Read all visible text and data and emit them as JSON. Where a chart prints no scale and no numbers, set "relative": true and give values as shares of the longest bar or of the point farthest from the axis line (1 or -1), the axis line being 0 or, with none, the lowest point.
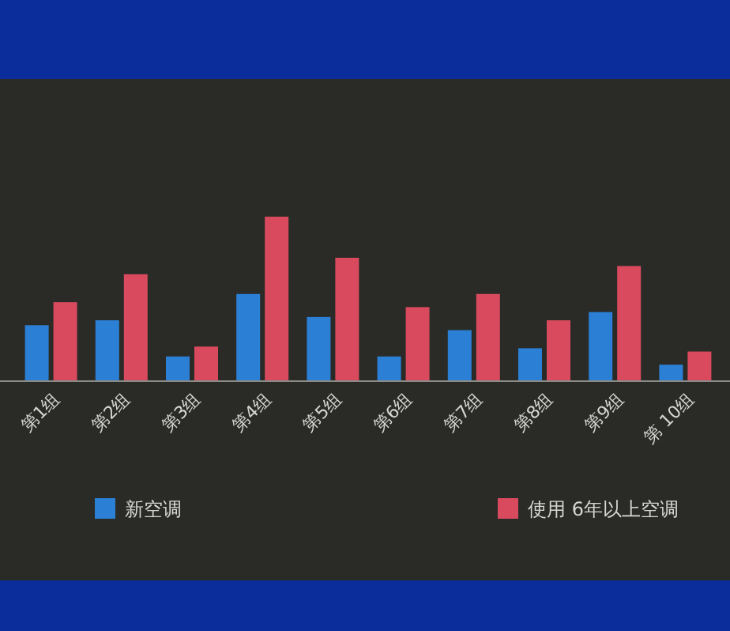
{
  "chart_data": {
    "type": "bar",
    "relative": true,
    "legend": "bottom",
    "categories": [
      "第1组",
      "第2组",
      "第3组",
      "第4组",
      "第5组",
      "第6组",
      "第7组",
      "第8组",
      "第9组",
      "第 10组"
    ],
    "series": [
      {
        "name": "新空调",
        "color": "#2b80d6",
        "values": [
          0.34,
          0.37,
          0.15,
          0.53,
          0.39,
          0.15,
          0.31,
          0.2,
          0.42,
          0.1
        ]
      },
      {
        "name": "使用 6年以上空调",
        "color": "#d94a5e",
        "values": [
          0.48,
          0.65,
          0.21,
          1,
          0.75,
          0.45,
          0.53,
          0.37,
          0.7,
          0.18
        ]
      }
    ]
  }
}
